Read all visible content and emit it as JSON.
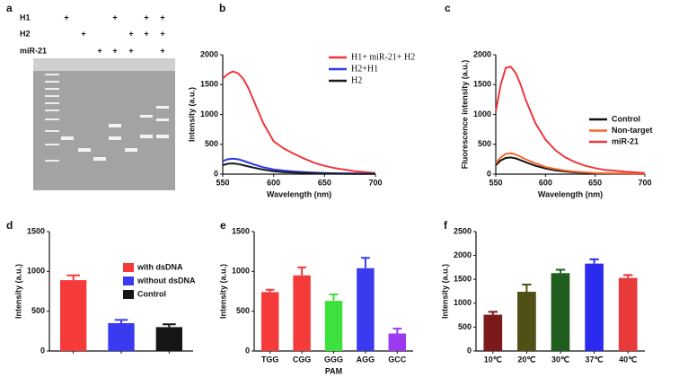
{
  "gel": {
    "panel": "a",
    "rows": [
      {
        "label": "H1",
        "marks": [
          "+",
          null,
          null,
          "+",
          null,
          "+",
          "+"
        ]
      },
      {
        "label": "H2",
        "marks": [
          null,
          "+",
          null,
          null,
          "+",
          "+",
          "+"
        ]
      },
      {
        "label": "miR-21",
        "marks": [
          null,
          null,
          "+",
          "+",
          "+",
          null,
          "+"
        ]
      }
    ]
  },
  "chart_data": [
    {
      "type": "line",
      "panel": "b",
      "xlabel": "Wavelength (nm)",
      "ylabel": "Intensity (a.u.)",
      "xlim": [
        550,
        700
      ],
      "xticks": [
        550,
        600,
        650,
        700
      ],
      "ylim": [
        0,
        2000
      ],
      "yticks": [
        0,
        500,
        1000,
        1500,
        2000
      ],
      "legend": "upper right",
      "x": [
        550,
        555,
        560,
        565,
        570,
        575,
        580,
        590,
        600,
        610,
        620,
        630,
        640,
        650,
        660,
        680,
        700
      ],
      "series": [
        {
          "name": "H1+ miR-21+ H2",
          "color": "#f0373c",
          "values": [
            1600,
            1680,
            1720,
            1690,
            1600,
            1450,
            1250,
            850,
            550,
            430,
            340,
            260,
            190,
            140,
            100,
            50,
            20
          ]
        },
        {
          "name": "H2+H1",
          "color": "#2e3de6",
          "values": [
            220,
            250,
            260,
            250,
            225,
            195,
            165,
            115,
            80,
            60,
            45,
            35,
            25,
            20,
            15,
            10,
            8
          ]
        },
        {
          "name": "H2",
          "color": "#1a1a1a",
          "values": [
            150,
            175,
            180,
            170,
            150,
            130,
            110,
            75,
            50,
            35,
            25,
            18,
            14,
            10,
            8,
            5,
            4
          ]
        }
      ]
    },
    {
      "type": "line",
      "panel": "c",
      "xlabel": "Wavelength (nm)",
      "ylabel": "Fluorescence intensity (a.u.)",
      "xlim": [
        550,
        700
      ],
      "xticks": [
        550,
        600,
        650,
        700
      ],
      "ylim": [
        0,
        2000
      ],
      "yticks": [
        0,
        500,
        1000,
        1500,
        2000
      ],
      "legend": "right",
      "x": [
        550,
        555,
        560,
        565,
        570,
        575,
        580,
        590,
        600,
        610,
        620,
        630,
        640,
        650,
        660,
        680,
        700
      ],
      "series": [
        {
          "name": "Control",
          "color": "#111111",
          "values": [
            150,
            230,
            270,
            280,
            265,
            235,
            200,
            140,
            95,
            65,
            45,
            30,
            22,
            15,
            10,
            6,
            3
          ]
        },
        {
          "name": "Non-target",
          "color": "#f26a2e",
          "values": [
            180,
            280,
            340,
            350,
            330,
            290,
            250,
            180,
            120,
            85,
            60,
            40,
            30,
            20,
            15,
            10,
            5
          ]
        },
        {
          "name": "miR-21",
          "color": "#f0373c",
          "values": [
            1050,
            1500,
            1780,
            1800,
            1700,
            1500,
            1250,
            850,
            580,
            400,
            280,
            200,
            140,
            100,
            70,
            40,
            20
          ]
        }
      ]
    },
    {
      "type": "bar",
      "panel": "d",
      "ylabel": "Intensity (a.u.)",
      "legend": "upper right",
      "ylim": [
        0,
        1500
      ],
      "yticks": [
        0,
        500,
        1000,
        1500
      ],
      "categories": [
        "with dsDNA",
        "without dsDNA",
        "Control"
      ],
      "colors": [
        "#f53a3a",
        "#3a3af0",
        "#161616"
      ],
      "values": [
        890,
        350,
        300
      ],
      "errors": [
        60,
        40,
        35
      ]
    },
    {
      "type": "bar",
      "panel": "e",
      "ylabel": "Intensity (a.u.)",
      "xlabel": "PAM",
      "ylim": [
        0,
        1500
      ],
      "yticks": [
        0,
        500,
        1000,
        1500
      ],
      "categories": [
        "TGG",
        "CGG",
        "GGG",
        "AGG",
        "GCC"
      ],
      "colors": [
        "#f53a3a",
        "#f53a3a",
        "#3ee03e",
        "#3a3af0",
        "#9b3af0"
      ],
      "values": [
        740,
        950,
        630,
        1040,
        220
      ],
      "errors": [
        30,
        100,
        80,
        130,
        60
      ]
    },
    {
      "type": "bar",
      "panel": "f",
      "ylabel": "Intensity (a.u.)",
      "ylim": [
        0,
        2500
      ],
      "yticks": [
        0,
        500,
        1000,
        1500,
        2000,
        2500
      ],
      "categories": [
        "10℃",
        "20℃",
        "30℃",
        "37℃",
        "40℃"
      ],
      "colors": [
        "#7b1a1a",
        "#4f4f16",
        "#1f5e1f",
        "#2b2bf0",
        "#e83a3a"
      ],
      "values": [
        760,
        1240,
        1630,
        1830,
        1530
      ],
      "errors": [
        60,
        150,
        70,
        90,
        60
      ]
    }
  ]
}
